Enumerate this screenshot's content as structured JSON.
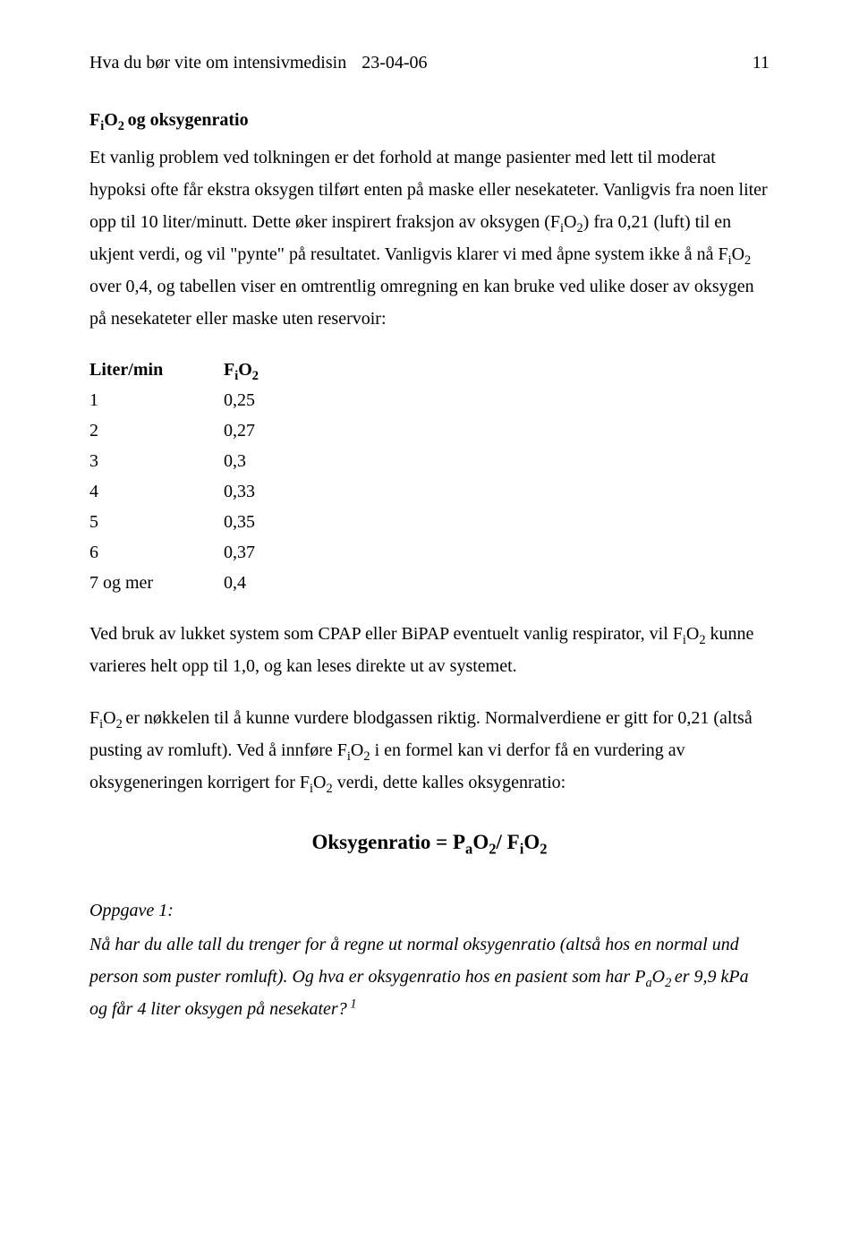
{
  "header": {
    "title": "Hva du bør vite om intensivmedisin",
    "date": "23-04-06",
    "page": "11"
  },
  "heading": {
    "pre": "F",
    "sub1": "i",
    "mid": "O",
    "sub2": "2 ",
    "post": "og oksygenratio"
  },
  "para1": {
    "t1": "Et vanlig problem ved tolkningen er det forhold at mange pasienter med lett til moderat hypoksi ofte får ekstra oksygen tilført enten på maske eller nesekateter. Vanligvis fra noen liter opp til 10 liter/minutt. Dette øker inspirert fraksjon av oksygen (F",
    "s1": "i",
    "t2": "O",
    "s2": "2",
    "t3": ") fra 0,21 (luft) til en ukjent verdi, og vil \"pynte\" på resultatet. Vanligvis klarer vi med åpne system ikke å nå F",
    "s3": "i",
    "t4": "O",
    "s4": "2",
    "t5": " over 0,4, og tabellen viser en omtrentlig omregning en kan bruke ved ulike doser av oksygen på nesekateter eller maske uten reservoir:"
  },
  "table": {
    "head_c1": "Liter/min",
    "head_c2_pre": "F",
    "head_c2_s1": "i",
    "head_c2_mid": "O",
    "head_c2_s2": "2",
    "rows": [
      {
        "c1": "1",
        "c2": "0,25"
      },
      {
        "c1": "2",
        "c2": "0,27"
      },
      {
        "c1": "3",
        "c2": "0,3"
      },
      {
        "c1": "4",
        "c2": "0,33"
      },
      {
        "c1": "5",
        "c2": "0,35"
      },
      {
        "c1": "6",
        "c2": "0,37"
      },
      {
        "c1": "7 og mer",
        "c2": "0,4"
      }
    ]
  },
  "para2": {
    "t1": "Ved bruk av lukket system som CPAP eller BiPAP eventuelt vanlig respirator, vil F",
    "s1": "i",
    "t2": "O",
    "s2": "2",
    "t3": " kunne varieres helt opp til 1,0, og kan leses direkte ut av systemet."
  },
  "para3": {
    "t1": "F",
    "s1": "i",
    "t2": "O",
    "s2": "2 ",
    "t3": "er nøkkelen til å kunne vurdere blodgassen riktig. Normalverdiene er gitt for 0,21 (altså pusting av romluft). Ved å innføre F",
    "s3": "i",
    "t4": "O",
    "s4": "2",
    "t5": " i en formel kan vi derfor få en vurdering av oksygeneringen korrigert for F",
    "s5": "i",
    "t6": "O",
    "s6": "2",
    "t7": " verdi, dette kalles oksygenratio:"
  },
  "formula": {
    "t1": "Oksygenratio = P",
    "s1": "a",
    "t2": "O",
    "s2": "2",
    "t3": "/ F",
    "s3": "i",
    "t4": "O",
    "s4": "2"
  },
  "task": {
    "label": "Oppgave 1:",
    "body_t1": " Nå har du alle tall du trenger for å regne ut normal oksygenratio (altså hos en normal und person som puster romluft). Og hva er oksygenratio hos en pasient som har P",
    "body_s1": "a",
    "body_t2": "O",
    "body_s2": "2 ",
    "body_t3": "er 9,9 kPa og får 4 liter oksygen på nesekater?",
    "body_sup": " 1"
  }
}
